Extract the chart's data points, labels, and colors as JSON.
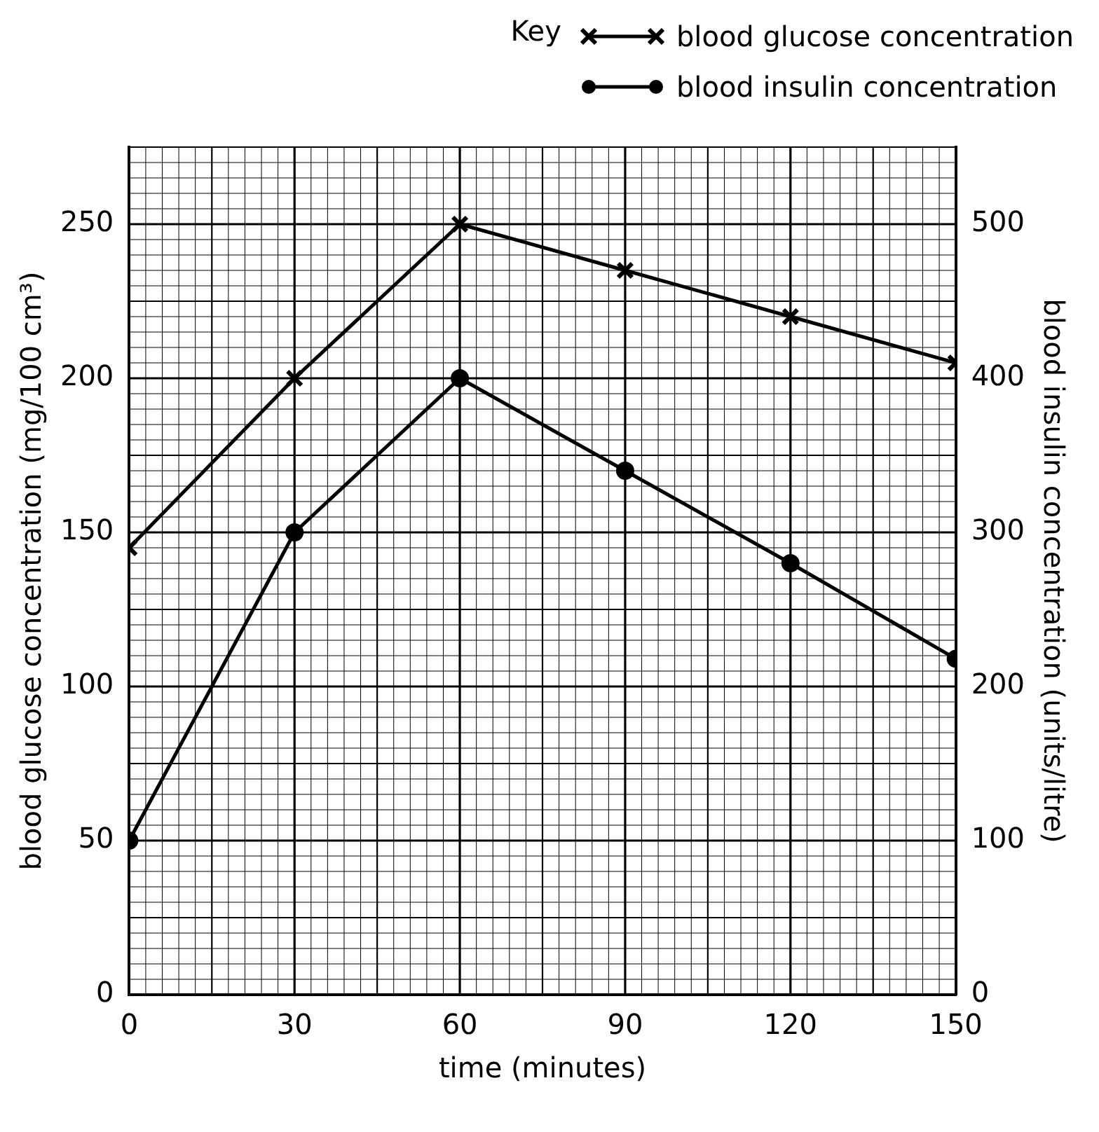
{
  "chart_data": {
    "type": "line",
    "xlabel": "time (minutes)",
    "ylabel": "blood glucose concentration (mg/100 cm³)",
    "y2label": "blood insulin concentration (units/litre)",
    "legend_title": "Key",
    "legend": "top right",
    "grid": true,
    "x": [
      0,
      30,
      60,
      90,
      120,
      150
    ],
    "xlim": [
      0,
      150
    ],
    "xticks": [
      0,
      30,
      60,
      90,
      120,
      150
    ],
    "ylim": [
      0,
      275
    ],
    "yticks": [
      0,
      50,
      100,
      150,
      200,
      250
    ],
    "y2lim": [
      0,
      550
    ],
    "y2ticks": [
      0,
      100,
      200,
      300,
      400,
      500
    ],
    "series": [
      {
        "name": "blood glucose concentration",
        "color": "#000000",
        "marker": "cross",
        "values": [
          145,
          200,
          250,
          235,
          220,
          205
        ]
      },
      {
        "name": "blood insulin concentration",
        "color": "#000000",
        "marker": "circle",
        "axis": "y2",
        "values": [
          100,
          300,
          400,
          340,
          280,
          218
        ]
      }
    ]
  }
}
